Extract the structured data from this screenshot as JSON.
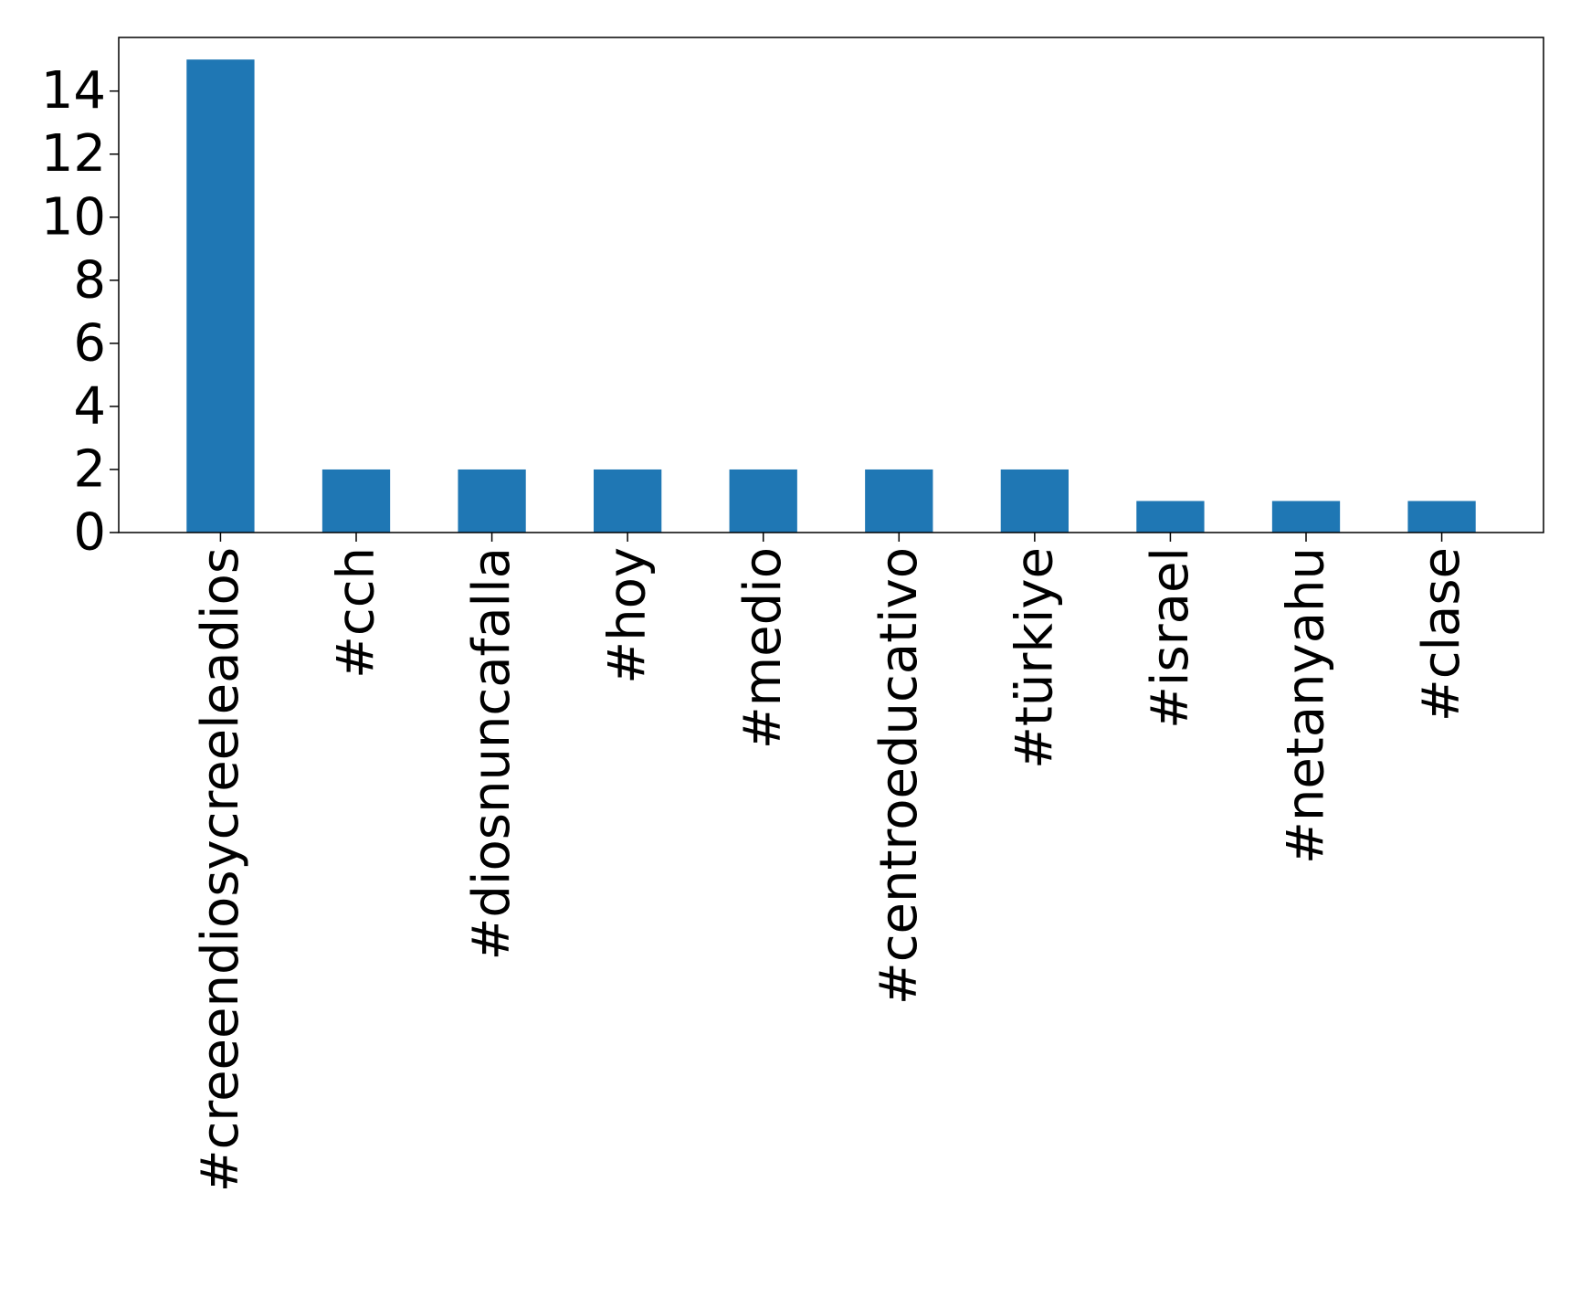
{
  "chart_data": {
    "type": "bar",
    "title": "",
    "xlabel": "",
    "ylabel": "",
    "categories": [
      "#creeendiosycreeleadios",
      "#cch",
      "#diosnuncafalla",
      "#hoy",
      "#medio",
      "#centroeducativo",
      "#türkiye",
      "#israel",
      "#netanyahu",
      "#clase"
    ],
    "values": [
      15,
      2,
      2,
      2,
      2,
      2,
      2,
      1,
      1,
      1
    ],
    "ylim": [
      0,
      15.7
    ],
    "yticks": [
      0,
      2,
      4,
      6,
      8,
      10,
      12,
      14
    ],
    "grid": false,
    "legend": "none",
    "colors": {
      "bar": "#1f77b4",
      "axis": "#000000",
      "background": "#ffffff"
    }
  }
}
